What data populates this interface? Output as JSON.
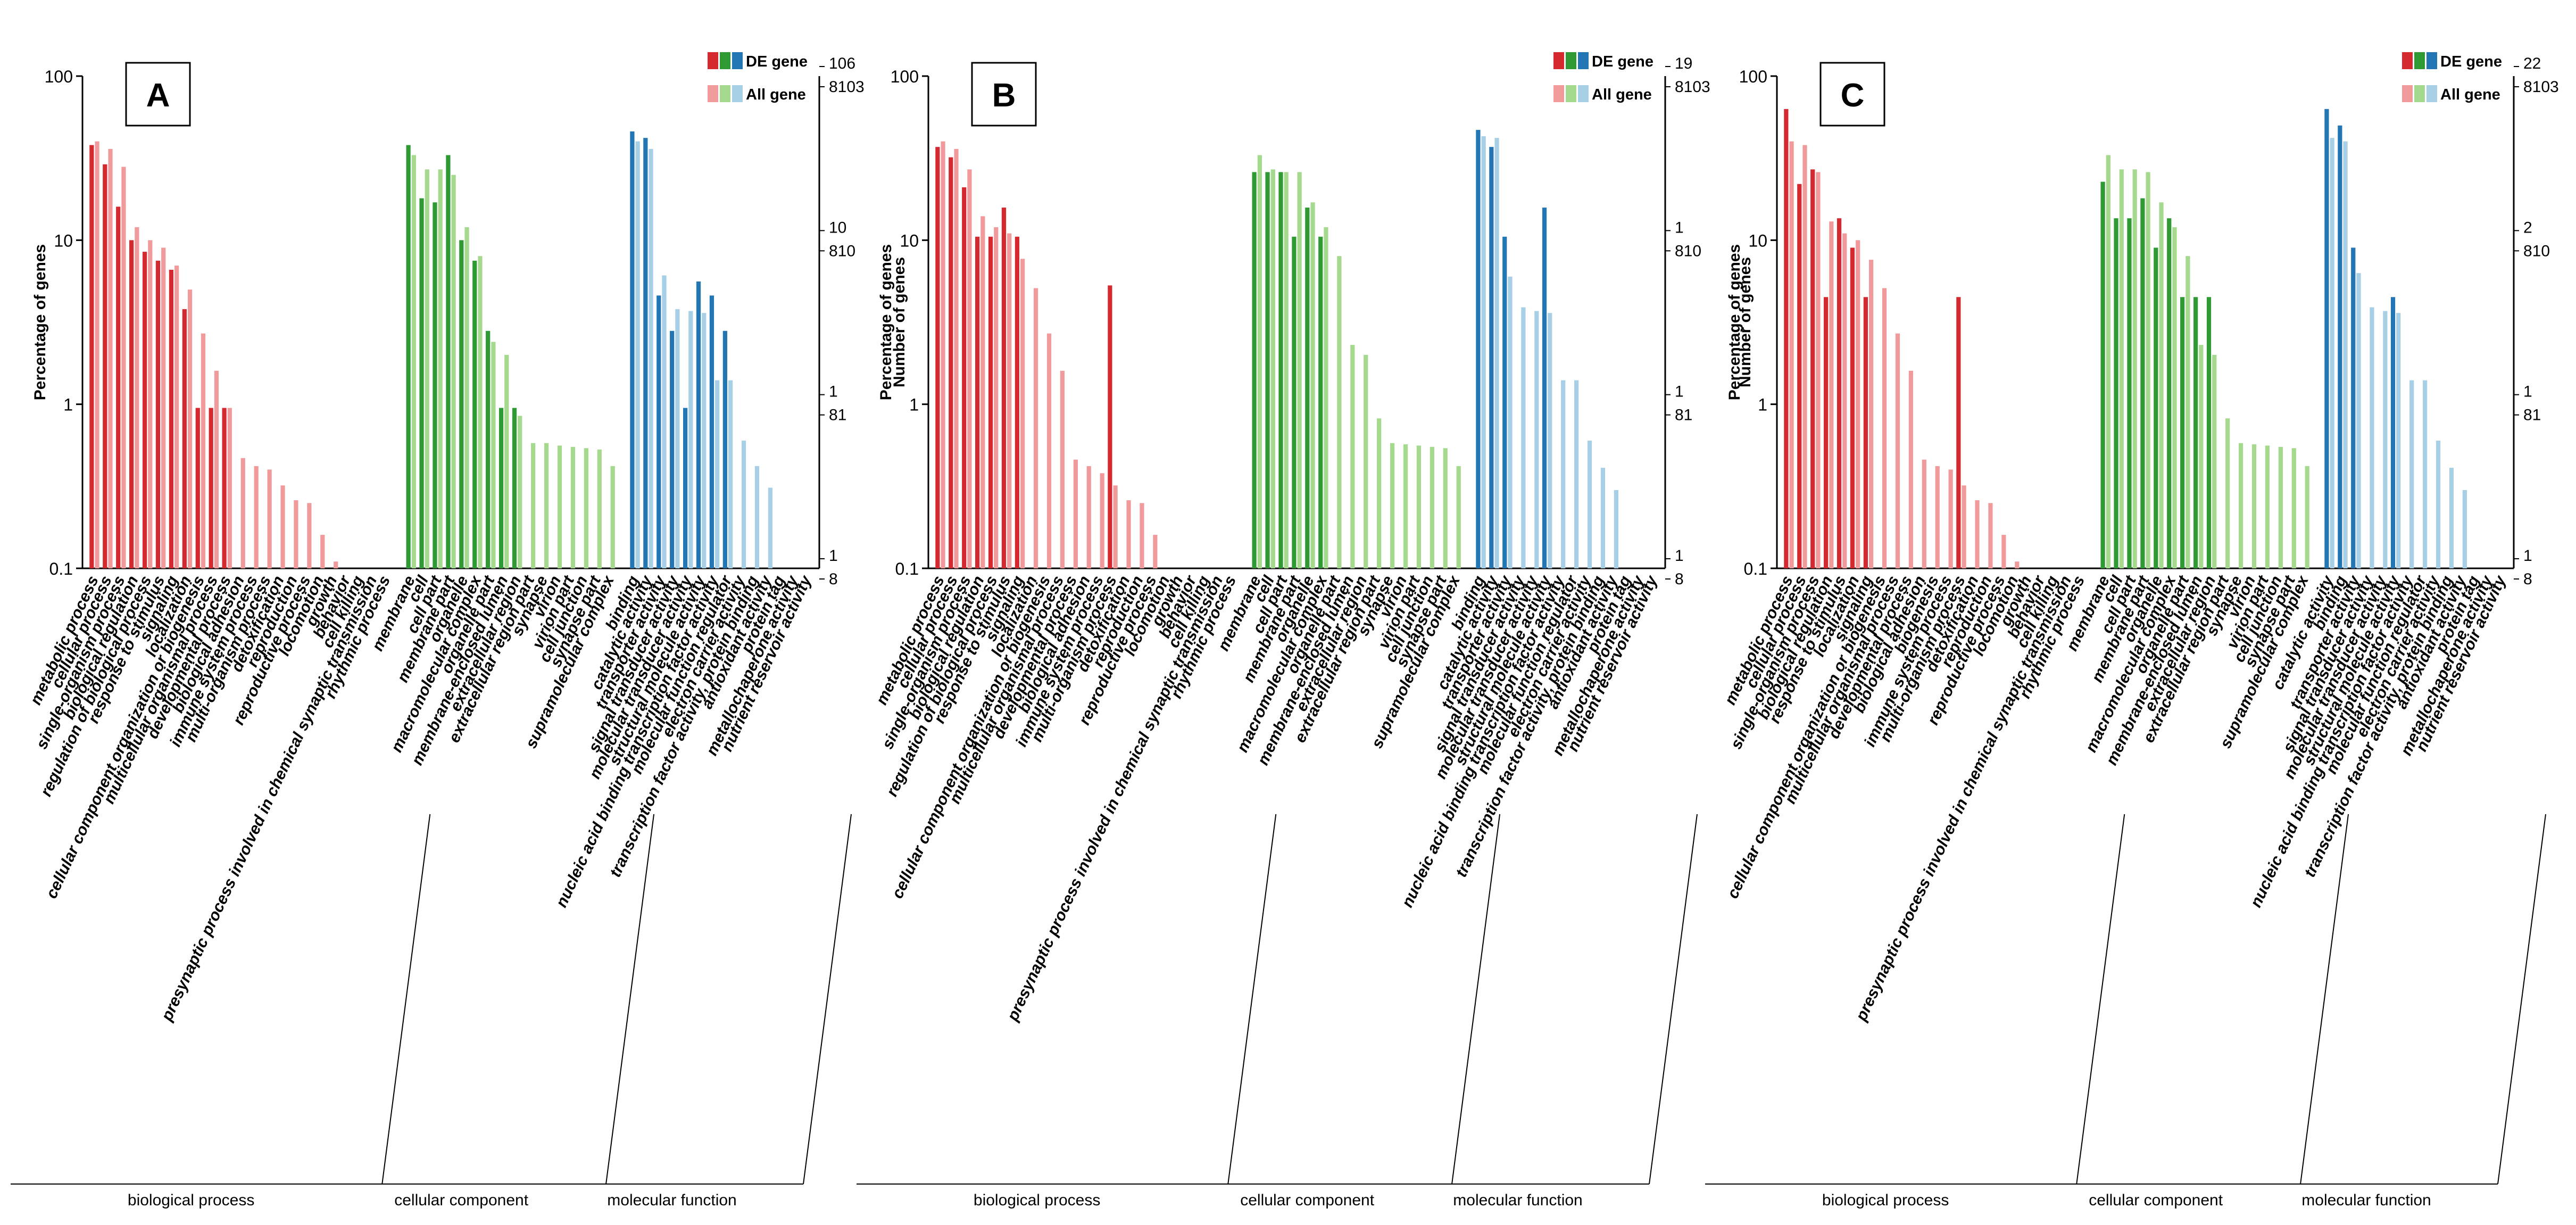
{
  "chart_data": [
    {
      "type": "bar",
      "panel_label": "A",
      "ylabel_left": "Percentage of genes",
      "ylabel_right": "Number of genes",
      "yscale": "log",
      "ylim": [
        0.1,
        100
      ],
      "left_ticks": [
        "100",
        "10",
        "1",
        "0.1"
      ],
      "right_ticks_de": [
        "106",
        "10",
        "1",
        "1"
      ],
      "right_ticks_all": [
        "8103",
        "810",
        "81",
        "8"
      ],
      "legend": [
        "DE gene",
        "All gene"
      ],
      "groups": [
        {
          "name": "biological process",
          "color_de": "#d42a2f",
          "color_all": "#f19a9c",
          "categories": [
            "metabolic process",
            "cellular process",
            "single-organism process",
            "biological regulation",
            "regulation of biological process",
            "response to stimulus",
            "signaling",
            "localization",
            "cellular component organization or biogenesis",
            "multicellular organismal process",
            "developmental process",
            "biological adhesion",
            "immune system process",
            "multi-organism process",
            "detoxification",
            "reproduction",
            "reproductive process",
            "locomotion",
            "growth",
            "behavior",
            "cell killing",
            "presynaptic process involved in chemical synaptic transmission",
            "rhythmic process"
          ],
          "de": [
            38,
            29,
            16,
            10,
            8.5,
            7.5,
            6.6,
            3.8,
            0.95,
            0.95,
            0.95,
            0,
            0,
            0,
            0,
            0,
            0,
            0,
            0,
            0,
            0,
            0,
            0
          ],
          "all": [
            40,
            36,
            28,
            12,
            10,
            9,
            7,
            5,
            2.7,
            1.6,
            0.95,
            0.47,
            0.42,
            0.4,
            0.32,
            0.26,
            0.25,
            0.16,
            0.11,
            0.1,
            0.1,
            0.1,
            0.1
          ]
        },
        {
          "name": "cellular component",
          "color_de": "#2f9a34",
          "color_all": "#a5d98d",
          "categories": [
            "membrane",
            "cell",
            "cell part",
            "membrane part",
            "organelle",
            "macromolecular complex",
            "organelle part",
            "membrane-enclosed lumen",
            "extracellular region",
            "extracellular region part",
            "synapse",
            "virion",
            "virion part",
            "cell junction",
            "synapse part",
            "supramolecular complex"
          ],
          "de": [
            38,
            18,
            17,
            33,
            10,
            7.5,
            2.8,
            0.95,
            0.95,
            0,
            0,
            0,
            0,
            0,
            0,
            0
          ],
          "all": [
            33,
            27,
            27,
            25,
            12,
            8,
            2.4,
            2,
            0.85,
            0.58,
            0.58,
            0.56,
            0.55,
            0.54,
            0.53,
            0.42
          ]
        },
        {
          "name": "molecular function",
          "color_de": "#2276b4",
          "color_all": "#a7cfe5",
          "categories": [
            "binding",
            "catalytic activity",
            "transporter activity",
            "signal transducer activity",
            "molecular transducer activity",
            "structural molecule activity",
            "nucleic acid binding transcription factor activity",
            "molecular function regulator",
            "electron carrier activity",
            "transcription factor activity, protein binding",
            "antioxidant activity",
            "protein tag",
            "metallochaperone activity",
            "nutrient reservoir activity"
          ],
          "de": [
            46,
            42,
            4.6,
            2.8,
            0.95,
            5.6,
            4.6,
            2.8,
            0,
            0,
            0,
            0,
            0,
            0
          ],
          "all": [
            40,
            36,
            6.1,
            3.8,
            3.7,
            3.6,
            1.4,
            1.4,
            0.6,
            0.42,
            0.31,
            0.1,
            0.1,
            0.1
          ]
        }
      ]
    },
    {
      "type": "bar",
      "panel_label": "B",
      "ylabel_left": "Percentage of genes",
      "ylabel_right": "Number of genes",
      "yscale": "log",
      "ylim": [
        0.1,
        100
      ],
      "left_ticks": [
        "100",
        "10",
        "1",
        "0.1"
      ],
      "right_ticks_de": [
        "19",
        "1",
        "1",
        "1"
      ],
      "right_ticks_all": [
        "8103",
        "810",
        "81",
        "8"
      ],
      "legend": [
        "DE gene",
        "All gene"
      ],
      "groups": [
        {
          "name": "biological process",
          "color_de": "#d42a2f",
          "color_all": "#f19a9c",
          "categories": [
            "metabolic process",
            "cellular process",
            "single-organism process",
            "biological regulation",
            "regulation of biological process",
            "response to stimulus",
            "signaling",
            "localization",
            "cellular component organization or biogenesis",
            "multicellular organismal process",
            "developmental process",
            "biological adhesion",
            "immune system process",
            "multi-organism process",
            "detoxification",
            "reproduction",
            "reproductive process",
            "locomotion",
            "growth",
            "behavior",
            "cell killing",
            "presynaptic process involved in chemical synaptic transmission",
            "rhythmic process"
          ],
          "de": [
            37,
            32,
            21,
            10.5,
            10.5,
            15.8,
            10.5,
            0,
            0,
            0,
            0,
            0,
            0,
            5.3,
            0,
            0,
            0,
            0,
            0,
            0,
            0,
            0,
            0
          ],
          "all": [
            40,
            36,
            27,
            14,
            12,
            11,
            7.7,
            5.1,
            2.7,
            1.6,
            0.46,
            0.42,
            0.38,
            0.32,
            0.26,
            0.25,
            0.16,
            0.1,
            0.1,
            0.1,
            0.1,
            0.1,
            0.1
          ]
        },
        {
          "name": "cellular component",
          "color_de": "#2f9a34",
          "color_all": "#a5d98d",
          "categories": [
            "membrane",
            "cell",
            "cell part",
            "membrane part",
            "organelle",
            "macromolecular complex",
            "organelle part",
            "membrane-enclosed lumen",
            "extracellular region",
            "extracellular region part",
            "synapse",
            "virion",
            "virion part",
            "cell junction",
            "synapse part",
            "supramolecular complex"
          ],
          "de": [
            26,
            26,
            26,
            10.5,
            15.8,
            10.5,
            0,
            0,
            0,
            0,
            0,
            0,
            0,
            0,
            0,
            0
          ],
          "all": [
            33,
            27,
            26,
            26,
            17,
            12,
            8,
            2.3,
            2,
            0.82,
            0.58,
            0.57,
            0.56,
            0.55,
            0.54,
            0.42
          ]
        },
        {
          "name": "molecular function",
          "color_de": "#2276b4",
          "color_all": "#a7cfe5",
          "categories": [
            "binding",
            "catalytic activity",
            "transporter activity",
            "signal transducer activity",
            "molecular transducer activity",
            "structural molecule activity",
            "nucleic acid binding transcription factor activity",
            "molecular function regulator",
            "electron carrier activity",
            "transcription factor activity, protein binding",
            "antioxidant activity",
            "protein tag",
            "metallochaperone activity",
            "nutrient reservoir activity"
          ],
          "de": [
            47,
            37,
            10.5,
            0,
            0,
            15.8,
            0,
            0,
            0,
            0,
            0,
            0,
            0,
            0
          ],
          "all": [
            43,
            42,
            6,
            3.9,
            3.7,
            3.6,
            1.4,
            1.4,
            0.6,
            0.41,
            0.3,
            0.1,
            0.1,
            0.1
          ]
        }
      ]
    },
    {
      "type": "bar",
      "panel_label": "C",
      "ylabel_left": "Percentage of genes",
      "ylabel_right": "Number of genes",
      "yscale": "log",
      "ylim": [
        0.1,
        100
      ],
      "left_ticks": [
        "100",
        "10",
        "1",
        "0.1"
      ],
      "right_ticks_de": [
        "22",
        "2",
        "1",
        "1"
      ],
      "right_ticks_all": [
        "8103",
        "810",
        "81",
        "8"
      ],
      "legend": [
        "DE gene",
        "All gene"
      ],
      "groups": [
        {
          "name": "biological process",
          "color_de": "#d42a2f",
          "color_all": "#f19a9c",
          "categories": [
            "metabolic process",
            "cellular process",
            "single-organism process",
            "biological regulation",
            "response to stimulus",
            "localization",
            "signaling",
            "cellular component organization or biogenesis",
            "multicellular organismal process",
            "developmental process",
            "biological adhesion",
            "biogenesis",
            "immune system process",
            "multi-organism process",
            "detoxification",
            "reproduction",
            "reproductive process",
            "locomotion",
            "growth",
            "behavior",
            "cell killing",
            "presynaptic process involved in chemical synaptic transmission",
            "rhythmic process"
          ],
          "de": [
            63,
            22,
            27,
            4.5,
            13.6,
            9,
            4.5,
            0,
            0,
            0,
            0,
            0,
            0,
            4.5,
            0,
            0,
            0,
            0,
            0,
            0,
            0,
            0,
            0
          ],
          "all": [
            40,
            38,
            26,
            13,
            11,
            10,
            7.6,
            5.1,
            2.7,
            1.6,
            0.46,
            0.42,
            0.4,
            0.32,
            0.26,
            0.25,
            0.16,
            0.11,
            0.1,
            0.1,
            0.1,
            0.1,
            0.1
          ]
        },
        {
          "name": "cellular component",
          "color_de": "#2f9a34",
          "color_all": "#a5d98d",
          "categories": [
            "membrane",
            "cell",
            "cell part",
            "membrane part",
            "organelle",
            "macromolecular complex",
            "organelle part",
            "membrane-enclosed lumen",
            "extracellular region",
            "extracellular region part",
            "synapse",
            "virion",
            "virion part",
            "cell junction",
            "synapse part",
            "supramolecular complex"
          ],
          "de": [
            22.7,
            13.6,
            13.6,
            18,
            9,
            13.6,
            4.5,
            4.5,
            4.5,
            0,
            0,
            0,
            0,
            0,
            0,
            0
          ],
          "all": [
            33,
            27,
            27,
            26,
            17,
            12,
            8,
            2.3,
            2,
            0.82,
            0.58,
            0.57,
            0.56,
            0.55,
            0.54,
            0.42
          ]
        },
        {
          "name": "molecular function",
          "color_de": "#2276b4",
          "color_all": "#a7cfe5",
          "categories": [
            "catalytic activity",
            "binding",
            "transporter activity",
            "signal transducer activity",
            "molecular transducer activity",
            "structural molecule activity",
            "nucleic acid binding transcription factor activity",
            "molecular function regulator",
            "electron carrier activity",
            "transcription factor activity, protein binding",
            "antioxidant activity",
            "protein tag",
            "metallochaperone activity",
            "nutrient reservoir activity"
          ],
          "de": [
            63,
            50,
            9,
            0,
            0,
            4.5,
            0,
            0,
            0,
            0,
            0,
            0,
            0,
            0
          ],
          "all": [
            42,
            40,
            6.3,
            3.9,
            3.7,
            3.6,
            1.4,
            1.4,
            0.6,
            0.41,
            0.3,
            0.1,
            0.1,
            0.1
          ]
        }
      ]
    }
  ]
}
